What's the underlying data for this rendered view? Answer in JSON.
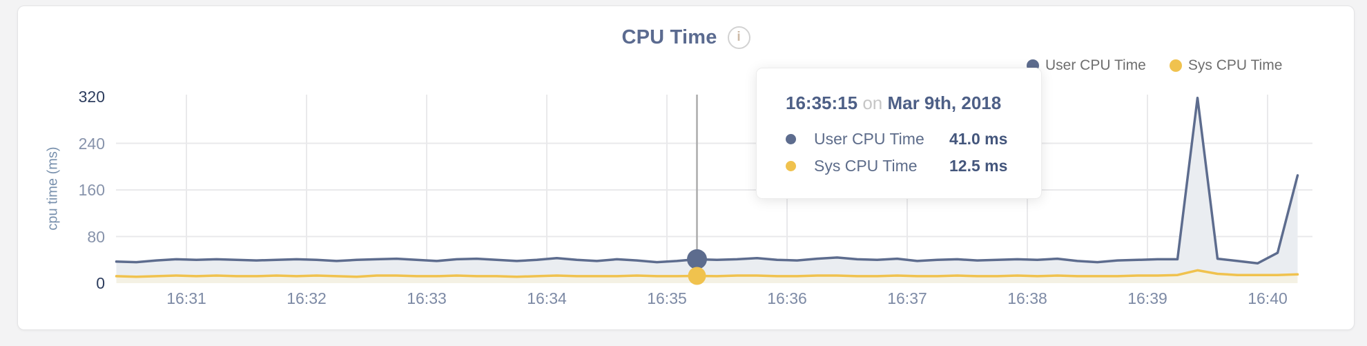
{
  "header": {
    "title": "CPU Time",
    "info_glyph": "i"
  },
  "legend": [
    {
      "label": "User CPU Time",
      "color": "#5d6c8e"
    },
    {
      "label": "Sys CPU Time",
      "color": "#f0c24e"
    }
  ],
  "tooltip": {
    "time": "16:35:15",
    "on_word": "on",
    "date": "Mar 9th, 2018",
    "rows": [
      {
        "label": "User CPU Time",
        "value": "41.0 ms",
        "color": "#5d6c8e"
      },
      {
        "label": "Sys CPU Time",
        "value": "12.5 ms",
        "color": "#f0c24e"
      }
    ]
  },
  "chart_data": {
    "type": "area",
    "title": "CPU Time",
    "ylabel": "cpu time (ms)",
    "ylim": [
      0,
      320
    ],
    "yticks": [
      320,
      240,
      160,
      80,
      0
    ],
    "grid_yticks": [
      240,
      160,
      80
    ],
    "x_unit": "seconds after 16:30:00 on Mar 9th, 2018",
    "xticks": [
      {
        "label": "16:31",
        "t": 60
      },
      {
        "label": "16:32",
        "t": 120
      },
      {
        "label": "16:33",
        "t": 180
      },
      {
        "label": "16:34",
        "t": 240
      },
      {
        "label": "16:35",
        "t": 300
      },
      {
        "label": "16:36",
        "t": 360
      },
      {
        "label": "16:37",
        "t": 420
      },
      {
        "label": "16:38",
        "t": 480
      },
      {
        "label": "16:39",
        "t": 540
      },
      {
        "label": "16:40",
        "t": 600
      }
    ],
    "series": [
      {
        "name": "User CPU Time",
        "color": "#5d6c8e",
        "fill": "#eaedf1",
        "points": [
          [
            25,
            37
          ],
          [
            35,
            36
          ],
          [
            45,
            39
          ],
          [
            55,
            41
          ],
          [
            65,
            40
          ],
          [
            75,
            41
          ],
          [
            85,
            40
          ],
          [
            95,
            39
          ],
          [
            105,
            40
          ],
          [
            115,
            41
          ],
          [
            125,
            40
          ],
          [
            135,
            38
          ],
          [
            145,
            40
          ],
          [
            155,
            41
          ],
          [
            165,
            42
          ],
          [
            175,
            40
          ],
          [
            185,
            38
          ],
          [
            195,
            41
          ],
          [
            205,
            42
          ],
          [
            215,
            40
          ],
          [
            225,
            38
          ],
          [
            235,
            40
          ],
          [
            245,
            43
          ],
          [
            255,
            40
          ],
          [
            265,
            38
          ],
          [
            275,
            41
          ],
          [
            285,
            39
          ],
          [
            295,
            36
          ],
          [
            305,
            38
          ],
          [
            315,
            41
          ],
          [
            325,
            40
          ],
          [
            335,
            41
          ],
          [
            345,
            43
          ],
          [
            355,
            40
          ],
          [
            365,
            39
          ],
          [
            375,
            42
          ],
          [
            385,
            44
          ],
          [
            395,
            41
          ],
          [
            405,
            40
          ],
          [
            415,
            42
          ],
          [
            425,
            38
          ],
          [
            435,
            40
          ],
          [
            445,
            41
          ],
          [
            455,
            39
          ],
          [
            465,
            40
          ],
          [
            475,
            41
          ],
          [
            485,
            40
          ],
          [
            495,
            42
          ],
          [
            505,
            38
          ],
          [
            515,
            36
          ],
          [
            525,
            39
          ],
          [
            535,
            40
          ],
          [
            545,
            41
          ],
          [
            555,
            41
          ],
          [
            565,
            318
          ],
          [
            575,
            42
          ],
          [
            585,
            38
          ],
          [
            595,
            34
          ],
          [
            605,
            52
          ],
          [
            615,
            185
          ]
        ]
      },
      {
        "name": "Sys CPU Time",
        "color": "#f0c24e",
        "fill": "#f4f1e4",
        "points": [
          [
            25,
            12
          ],
          [
            35,
            11
          ],
          [
            45,
            12
          ],
          [
            55,
            13
          ],
          [
            65,
            12
          ],
          [
            75,
            13
          ],
          [
            85,
            12
          ],
          [
            95,
            12
          ],
          [
            105,
            13
          ],
          [
            115,
            12
          ],
          [
            125,
            13
          ],
          [
            135,
            12
          ],
          [
            145,
            11
          ],
          [
            155,
            13
          ],
          [
            165,
            13
          ],
          [
            175,
            12
          ],
          [
            185,
            12
          ],
          [
            195,
            13
          ],
          [
            205,
            12
          ],
          [
            215,
            12
          ],
          [
            225,
            11
          ],
          [
            235,
            12
          ],
          [
            245,
            13
          ],
          [
            255,
            12
          ],
          [
            265,
            12
          ],
          [
            275,
            12
          ],
          [
            285,
            13
          ],
          [
            295,
            12
          ],
          [
            305,
            12
          ],
          [
            315,
            12.5
          ],
          [
            325,
            12
          ],
          [
            335,
            13
          ],
          [
            345,
            13
          ],
          [
            355,
            12
          ],
          [
            365,
            12
          ],
          [
            375,
            13
          ],
          [
            385,
            13
          ],
          [
            395,
            12
          ],
          [
            405,
            12
          ],
          [
            415,
            13
          ],
          [
            425,
            12
          ],
          [
            435,
            12
          ],
          [
            445,
            13
          ],
          [
            455,
            12
          ],
          [
            465,
            12
          ],
          [
            475,
            13
          ],
          [
            485,
            12
          ],
          [
            495,
            13
          ],
          [
            505,
            12
          ],
          [
            515,
            12
          ],
          [
            525,
            12
          ],
          [
            535,
            13
          ],
          [
            545,
            13
          ],
          [
            555,
            14
          ],
          [
            565,
            22
          ],
          [
            575,
            16
          ],
          [
            585,
            14
          ],
          [
            595,
            14
          ],
          [
            605,
            14
          ],
          [
            615,
            15
          ]
        ]
      }
    ],
    "hover": {
      "t": 315,
      "time_label": "16:35:15",
      "user_ms": 41.0,
      "sys_ms": 12.5,
      "crosshair_color": "#ababab"
    }
  },
  "colors": {
    "grid": "#e9e9eb",
    "page_bg": "#f3f3f4",
    "card_bg": "#ffffff",
    "tick_text": "#7d8aa5",
    "tick_text_emph": "#2d3d5e"
  }
}
